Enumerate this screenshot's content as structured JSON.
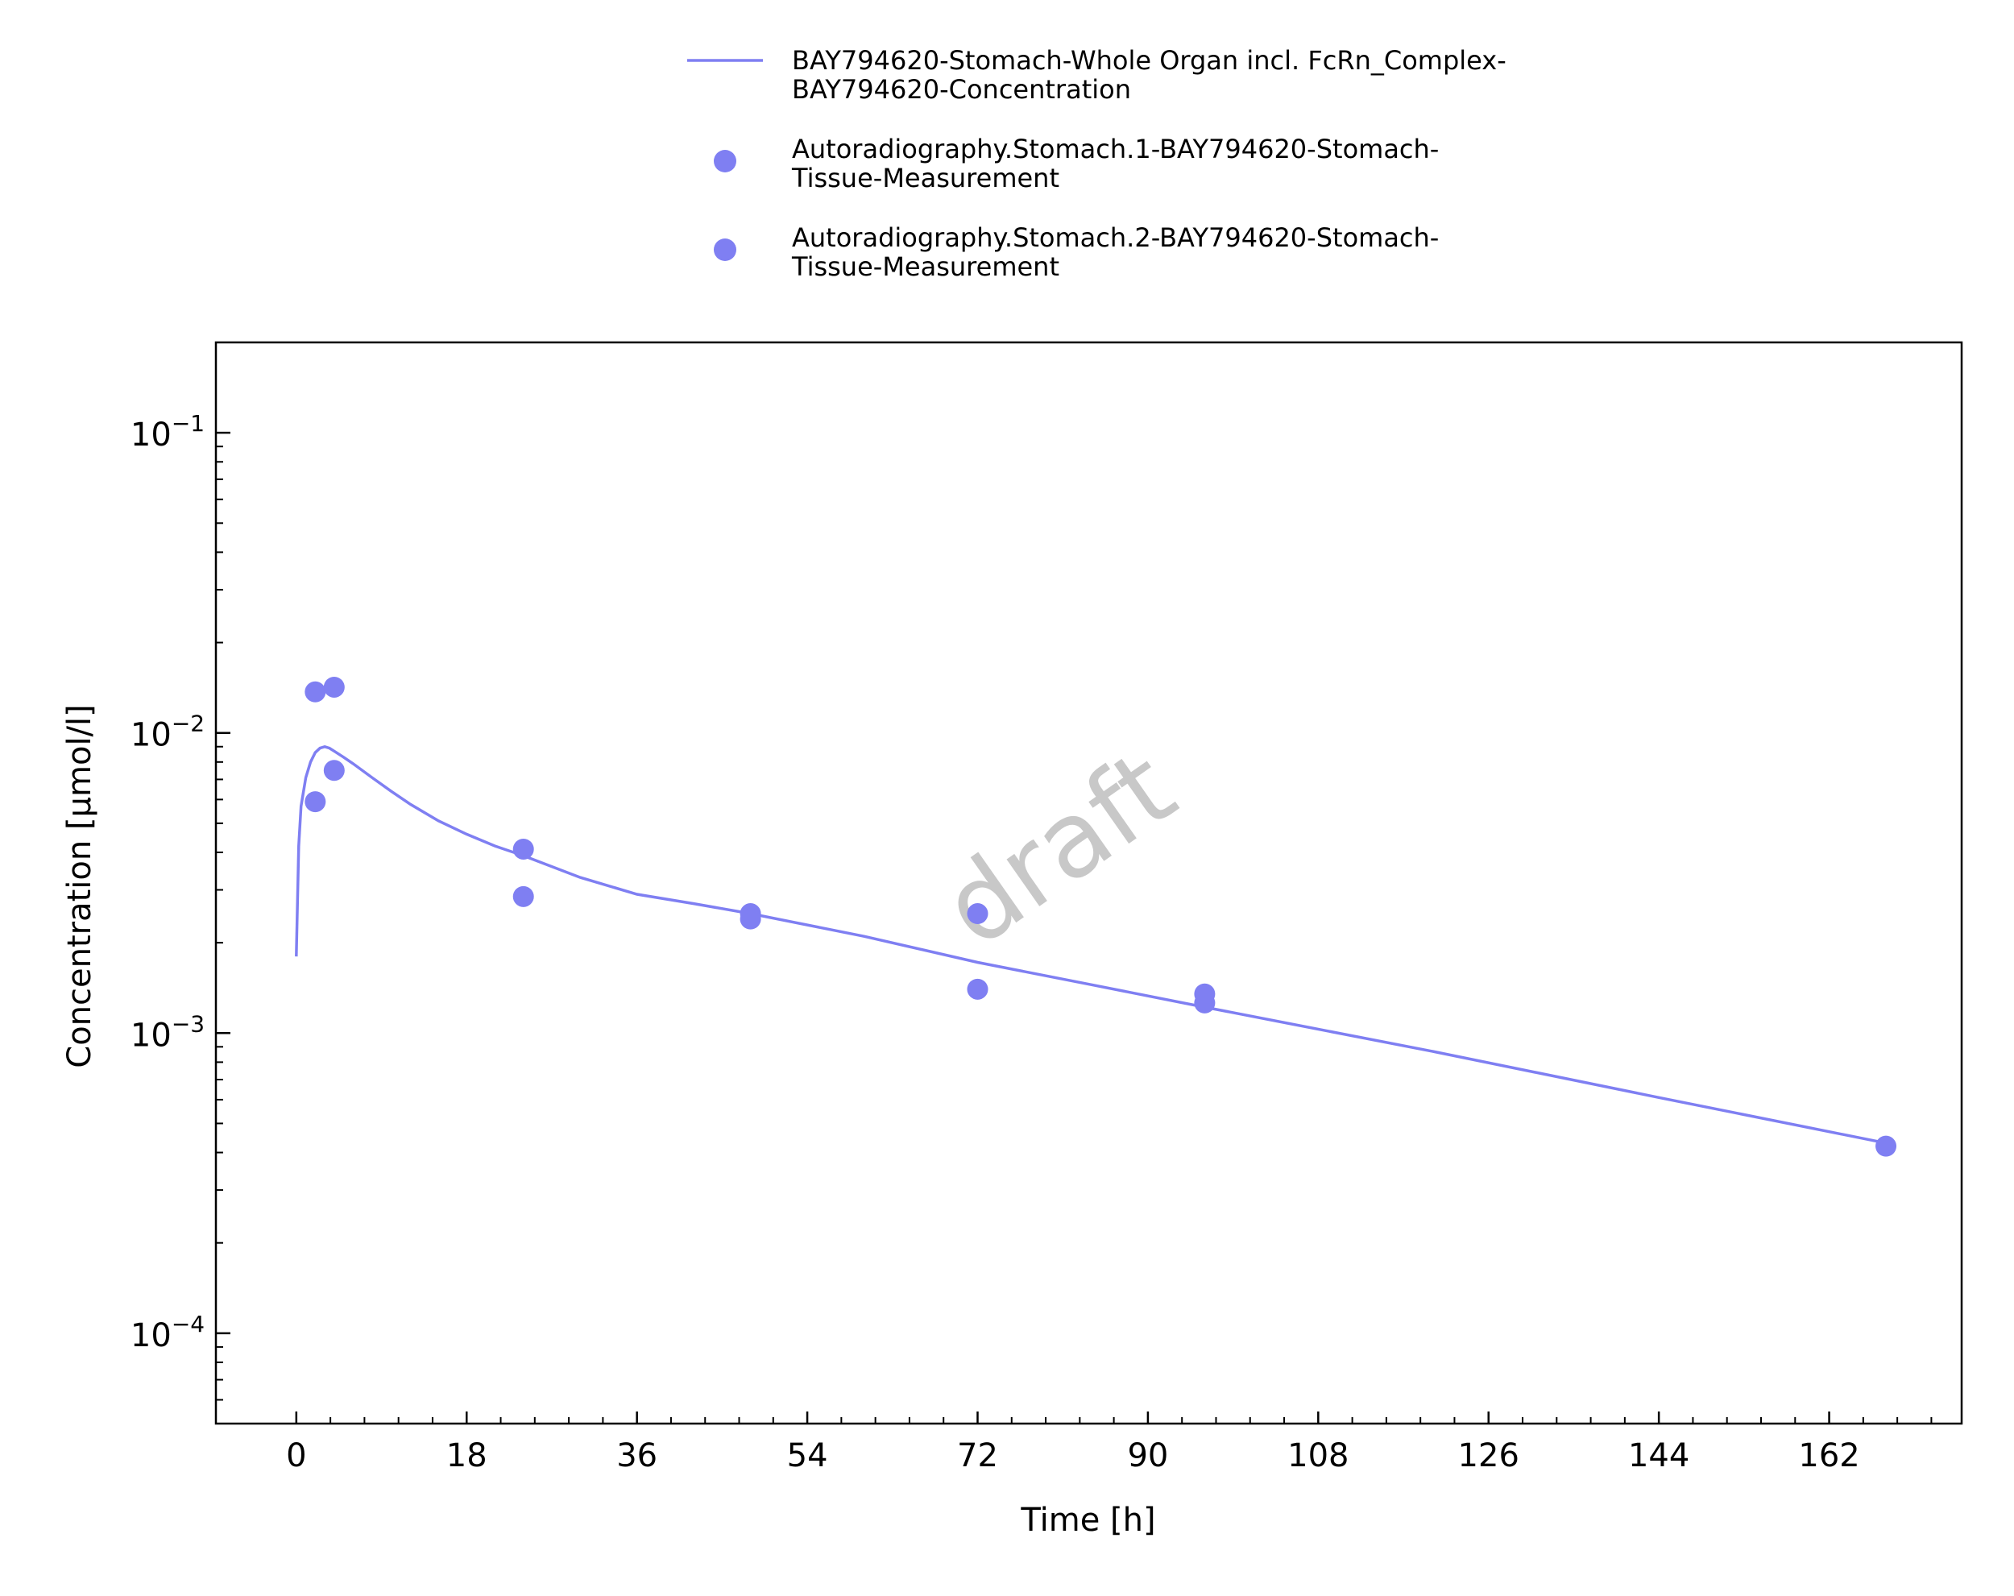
{
  "chart_data": {
    "type": "line",
    "xlabel": "Time [h]",
    "ylabel": "Concentration [µmol/l]",
    "xlim": [
      -8.5,
      176
    ],
    "ylim": [
      5e-05,
      0.2
    ],
    "yscale": "log",
    "x_ticks": [
      0,
      18,
      36,
      54,
      72,
      90,
      108,
      126,
      144,
      162
    ],
    "y_ticks": [
      {
        "value": 0.1,
        "base": "10",
        "exp": "−1"
      },
      {
        "value": 0.01,
        "base": "10",
        "exp": "−2"
      },
      {
        "value": 0.001,
        "base": "10",
        "exp": "−3"
      },
      {
        "value": 0.0001,
        "base": "10",
        "exp": "−4"
      }
    ],
    "grid": false,
    "legend_position": "top-center",
    "watermark": "draft",
    "series": [
      {
        "name_lines": [
          "BAY794620-Stomach-Whole Organ incl. FcRn_Complex-",
          "BAY794620-Concentration"
        ],
        "kind": "line",
        "color": "#7f7ff2",
        "x": [
          0,
          0.25,
          0.5,
          1,
          1.5,
          2,
          2.5,
          3,
          3.5,
          4,
          5,
          6,
          8,
          10,
          12,
          15,
          18,
          21,
          24,
          30,
          36,
          42,
          48,
          60,
          72,
          84,
          96,
          120,
          144,
          168
        ],
        "y": [
          0.0018,
          0.0042,
          0.0057,
          0.0071,
          0.008,
          0.0086,
          0.0089,
          0.009,
          0.0089,
          0.0087,
          0.0083,
          0.0079,
          0.0071,
          0.0064,
          0.0058,
          0.0051,
          0.0046,
          0.0042,
          0.0039,
          0.0033,
          0.0029,
          0.0027,
          0.0025,
          0.0021,
          0.00172,
          0.00145,
          0.00122,
          0.00087,
          0.00061,
          0.00043
        ]
      },
      {
        "name_lines": [
          "Autoradiography.Stomach.1-BAY794620-Stomach-",
          "Tissue-Measurement"
        ],
        "kind": "scatter",
        "color": "#7f7ff2",
        "x": [
          2,
          4,
          24,
          48,
          72,
          96,
          168
        ],
        "y": [
          0.0059,
          0.0075,
          0.0041,
          0.0025,
          0.0025,
          0.00135,
          0.00042
        ]
      },
      {
        "name_lines": [
          "Autoradiography.Stomach.2-BAY794620-Stomach-",
          "Tissue-Measurement"
        ],
        "kind": "scatter",
        "color": "#7f7ff2",
        "x": [
          2,
          4,
          24,
          48,
          72,
          96
        ],
        "y": [
          0.0137,
          0.0142,
          0.00285,
          0.0024,
          0.0014,
          0.00126
        ]
      }
    ]
  }
}
